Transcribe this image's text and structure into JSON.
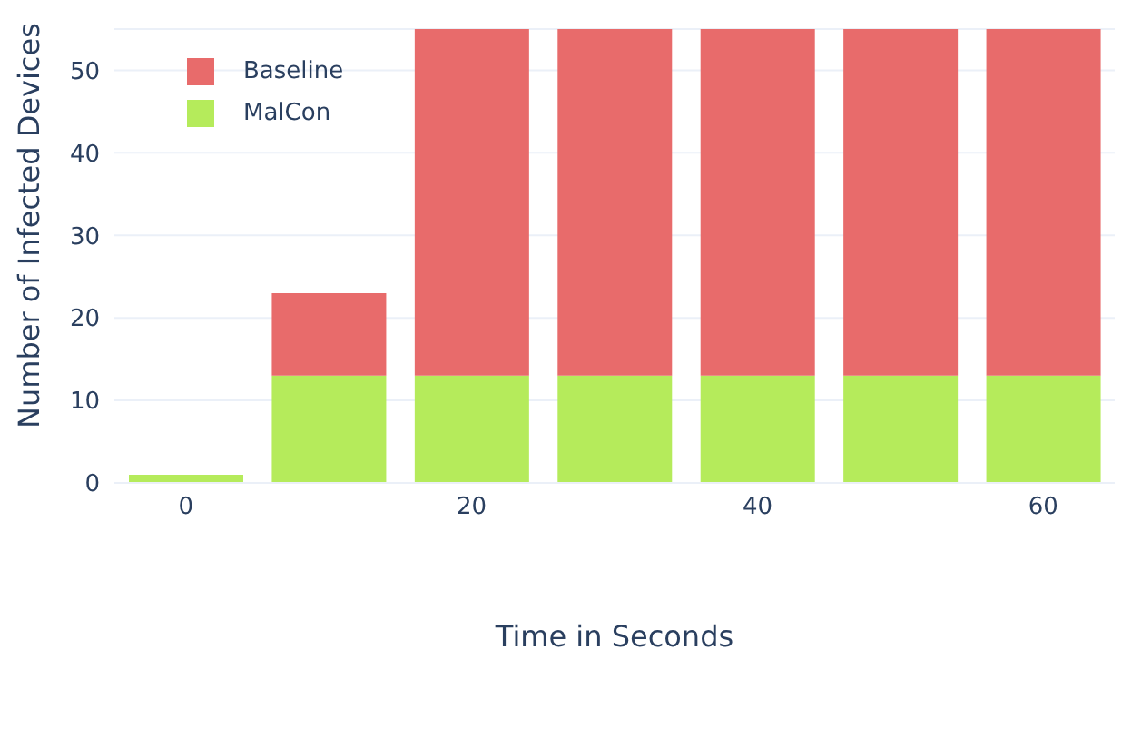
{
  "chart_data": {
    "type": "bar",
    "stacked": true,
    "xlabel": "Time in Seconds",
    "ylabel": "Number of Infected Devices",
    "x": [
      0,
      10,
      20,
      30,
      40,
      50,
      60
    ],
    "series": [
      {
        "name": "MalCon",
        "color": "#b5eb5b",
        "values": [
          1,
          13,
          13,
          13,
          13,
          13,
          13
        ]
      },
      {
        "name": "Baseline",
        "color": "#e86b6b",
        "values": [
          0,
          10,
          42,
          42,
          42,
          42,
          42
        ]
      }
    ],
    "xlim": [
      -5,
      65
    ],
    "xticks": [
      0,
      20,
      40,
      60
    ],
    "ylim": [
      0,
      55
    ],
    "yticks": [
      0,
      10,
      20,
      30,
      40,
      50
    ],
    "grid": "y",
    "legend": "top left"
  }
}
